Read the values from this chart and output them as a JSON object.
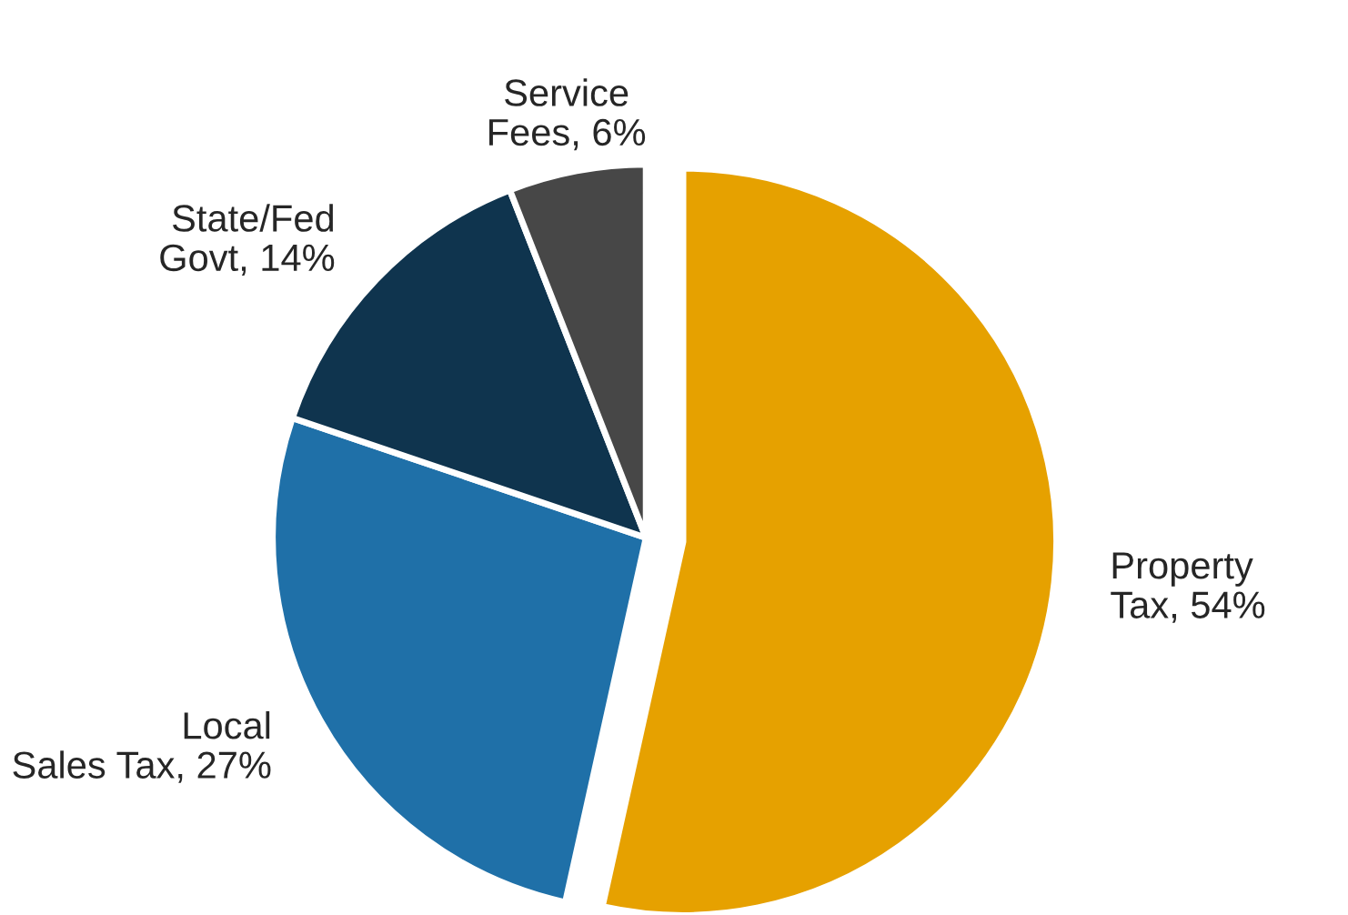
{
  "chart_data": {
    "type": "pie",
    "categories": [
      "Property\nTax",
      "Local\nSales Tax",
      "State/Fed\nGovt",
      "Service\nFees"
    ],
    "values": [
      54,
      27,
      14,
      6
    ],
    "value_labels": [
      "54%",
      "27%",
      "14%",
      "6%"
    ],
    "colors": [
      "#e6a100",
      "#1f70a8",
      "#0f344e",
      "#474747"
    ],
    "legend": false
  }
}
